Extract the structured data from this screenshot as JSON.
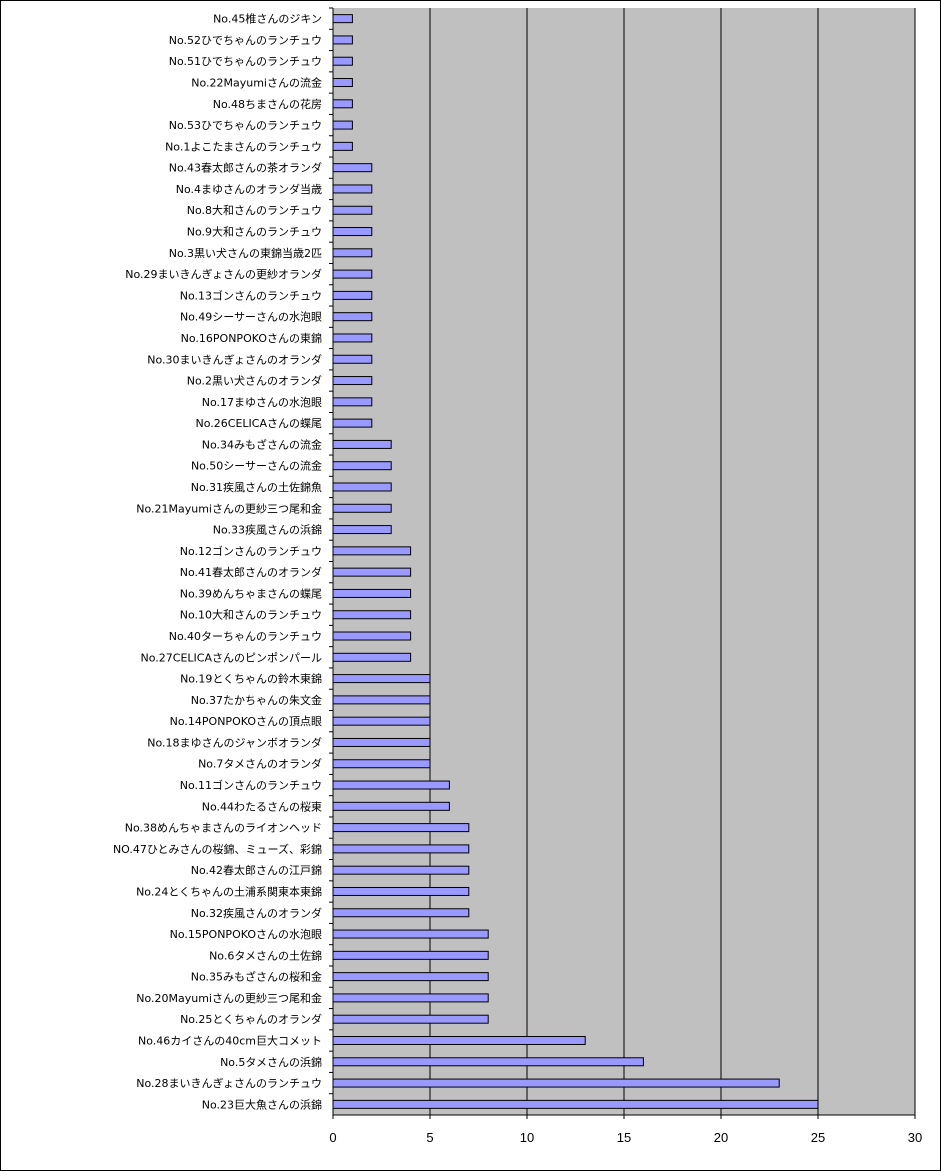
{
  "chart_data": {
    "type": "bar",
    "orientation": "horizontal",
    "title": "",
    "xlabel": "",
    "ylabel": "",
    "xlim": [
      0,
      30
    ],
    "xticks": [
      0,
      5,
      10,
      15,
      20,
      25,
      30
    ],
    "grid": "vertical",
    "legend": "none",
    "colors": {
      "plot_bg": "#c0c0c0",
      "bar_fill": "#9999ff",
      "bar_stroke": "#000000",
      "grid": "#000000"
    },
    "categories": [
      "No.45椎さんのジキン",
      "No.52ひでちゃんのランチュウ",
      "No.51ひでちゃんのランチュウ",
      "No.22Mayumiさんの流金",
      "No.48ちまさんの花房",
      "No.53ひでちゃんのランチュウ",
      "No.1よこたまさんのランチュウ",
      "No.43春太郎さんの茶オランダ",
      "No.4まゆさんのオランダ当歳",
      "No.8大和さんのランチュウ",
      "No.9大和さんのランチュウ",
      "No.3黒い犬さんの東錦当歳2匹",
      "No.29まいきんぎょさんの更紗オランダ",
      "No.13ゴンさんのランチュウ",
      "No.49シーサーさんの水泡眼",
      "No.16PONPOKOさんの東錦",
      "No.30まいきんぎょさんのオランダ",
      "No.2黒い犬さんのオランダ",
      "No.17まゆさんの水泡眼",
      "No.26CELICAさんの蝶尾",
      "No.34みもざさんの流金",
      "No.50シーサーさんの流金",
      "No.31疾風さんの土佐錦魚",
      "No.21Mayumiさんの更紗三つ尾和金",
      "No.33疾風さんの浜錦",
      "No.12ゴンさんのランチュウ",
      "No.41春太郎さんのオランダ",
      "No.39めんちゃまさんの蝶尾",
      "No.10大和さんのランチュウ",
      "No.40ターちゃんのランチュウ",
      "No.27CELICAさんのピンポンパール",
      "No.19とくちゃんの鈴木東錦",
      "No.37たかちゃんの朱文金",
      "No.14PONPOKOさんの頂点眼",
      "No.18まゆさんのジャンボオランダ",
      "No.7タメさんのオランダ",
      "No.11ゴンさんのランチュウ",
      "No.44わたるさんの桜東",
      "No.38めんちゃまさんのライオンヘッド",
      "NO.47ひとみさんの桜錦、ミューズ、彩錦",
      "No.42春太郎さんの江戸錦",
      "No.24とくちゃんの土浦系関東本東錦",
      "No.32疾風さんのオランダ",
      "No.15PONPOKOさんの水泡眼",
      "No.6タメさんの土佐錦",
      "No.35みもざさんの桜和金",
      "No.20Mayumiさんの更紗三つ尾和金",
      "No.25とくちゃんのオランダ",
      "No.46カイさんの40cm巨大コメット",
      "No.5タメさんの浜錦",
      "No.28まいきんぎょさんのランチュウ",
      "No.23巨大魚さんの浜錦"
    ],
    "values": [
      1,
      1,
      1,
      1,
      1,
      1,
      1,
      2,
      2,
      2,
      2,
      2,
      2,
      2,
      2,
      2,
      2,
      2,
      2,
      2,
      3,
      3,
      3,
      3,
      3,
      4,
      4,
      4,
      4,
      4,
      4,
      5,
      5,
      5,
      5,
      5,
      6,
      6,
      7,
      7,
      7,
      7,
      7,
      8,
      8,
      8,
      8,
      8,
      13,
      16,
      23,
      25
    ]
  }
}
